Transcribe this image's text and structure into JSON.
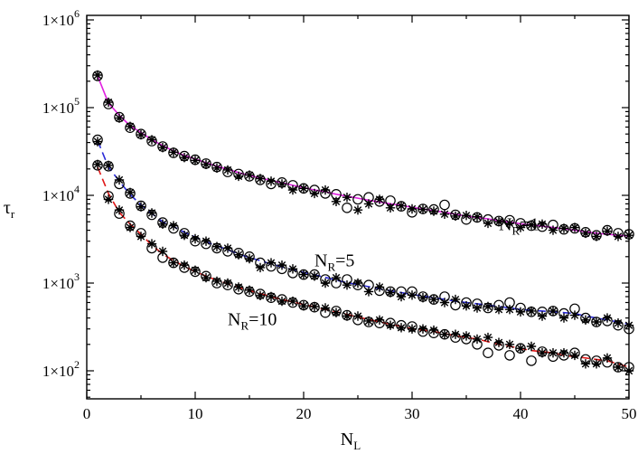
{
  "chart_data": {
    "type": "scatter",
    "title": "",
    "xlabel": {
      "base": "N",
      "sub": "L"
    },
    "ylabel": {
      "base": "τ",
      "sub": "r"
    },
    "xlim": [
      0,
      50
    ],
    "ylim": [
      50,
      1000000
    ],
    "yscale": "log",
    "grid": false,
    "x_ticks": [
      0,
      10,
      20,
      30,
      40,
      50
    ],
    "y_ticks": [
      {
        "value": 100,
        "mantissa": "1×10",
        "exp": "2"
      },
      {
        "value": 1000,
        "mantissa": "1×10",
        "exp": "3"
      },
      {
        "value": 10000,
        "mantissa": "1×10",
        "exp": "4"
      },
      {
        "value": 100000,
        "mantissa": "1×10",
        "exp": "5"
      },
      {
        "value": 1000000,
        "mantissa": "1×10",
        "exp": "6"
      }
    ],
    "series": [
      {
        "id": "nr1",
        "label": {
          "base": "N",
          "sub": "R",
          "tail": "=1"
        },
        "label_at": [
          38,
          4000
        ],
        "fit_color": "#e020e0",
        "fit_dash": false,
        "x": [
          1,
          2,
          3,
          4,
          5,
          6,
          7,
          8,
          9,
          10,
          11,
          12,
          13,
          14,
          15,
          16,
          17,
          18,
          19,
          20,
          21,
          22,
          23,
          24,
          25,
          26,
          27,
          28,
          29,
          30,
          31,
          32,
          33,
          34,
          35,
          36,
          37,
          38,
          39,
          40,
          41,
          42,
          43,
          44,
          45,
          46,
          47,
          48,
          49,
          50
        ],
        "fit": [
          230000,
          113000,
          82000,
          62000,
          52000,
          43000,
          37000,
          32000,
          28500,
          26000,
          23500,
          21500,
          19800,
          18200,
          16800,
          15800,
          14800,
          13900,
          13000,
          12300,
          11500,
          11000,
          10300,
          9800,
          9300,
          8800,
          8400,
          8000,
          7700,
          7300,
          7000,
          6700,
          6400,
          6100,
          5800,
          5600,
          5400,
          5150,
          4950,
          4750,
          4600,
          4450,
          4300,
          4150,
          4000,
          3850,
          3700,
          3600,
          3500,
          3450
        ],
        "circles": [
          230000,
          110000,
          78000,
          59000,
          50000,
          41500,
          36000,
          30500,
          28000,
          25500,
          23000,
          21000,
          18500,
          17500,
          16500,
          15000,
          13500,
          14000,
          13000,
          12000,
          11500,
          10500,
          10300,
          7200,
          9000,
          9500,
          8500,
          8700,
          7500,
          6400,
          7000,
          6900,
          7800,
          6000,
          5300,
          5600,
          5300,
          5100,
          5200,
          4800,
          4500,
          4400,
          4600,
          4100,
          4200,
          3800,
          3500,
          4000,
          3700,
          3600
        ],
        "stars": [
          235000,
          115000,
          76000,
          61000,
          49000,
          43000,
          35000,
          31000,
          27000,
          25000,
          22500,
          20500,
          19500,
          16500,
          17000,
          15500,
          14500,
          13500,
          11500,
          12000,
          10500,
          11500,
          8500,
          9500,
          6800,
          8000,
          9000,
          7200,
          7600,
          7000,
          6900,
          6600,
          6100,
          5800,
          5900,
          5700,
          4800,
          5000,
          4800,
          4300,
          4600,
          4700,
          4000,
          4200,
          4300,
          3700,
          3400,
          3900,
          3400,
          3500
        ]
      },
      {
        "id": "nr5",
        "label": {
          "base": "N",
          "sub": "R",
          "tail": "=5"
        },
        "label_at": [
          21,
          1550
        ],
        "fit_color": "#2a2ad8",
        "fit_dash": true,
        "x": [
          1,
          2,
          3,
          4,
          5,
          6,
          7,
          8,
          9,
          10,
          11,
          12,
          13,
          14,
          15,
          16,
          17,
          18,
          19,
          20,
          21,
          22,
          23,
          24,
          25,
          26,
          27,
          28,
          29,
          30,
          31,
          32,
          33,
          34,
          35,
          36,
          37,
          38,
          39,
          40,
          41,
          42,
          43,
          44,
          45,
          46,
          47,
          48,
          49,
          50
        ],
        "fit": [
          42000,
          21000,
          14500,
          10200,
          7800,
          6200,
          5000,
          4400,
          3800,
          3350,
          2950,
          2650,
          2400,
          2150,
          1950,
          1800,
          1650,
          1530,
          1420,
          1320,
          1240,
          1160,
          1080,
          1010,
          960,
          910,
          860,
          820,
          780,
          740,
          710,
          680,
          650,
          620,
          600,
          580,
          560,
          540,
          520,
          500,
          490,
          480,
          470,
          460,
          450,
          420,
          400,
          380,
          360,
          340
        ],
        "circles": [
          43000,
          21500,
          13500,
          10500,
          7600,
          6000,
          4900,
          4200,
          3700,
          3000,
          2800,
          2500,
          2300,
          2200,
          2000,
          1700,
          1550,
          1450,
          1300,
          1250,
          1250,
          1100,
          1000,
          1100,
          950,
          950,
          820,
          800,
          800,
          800,
          700,
          650,
          700,
          560,
          600,
          580,
          520,
          560,
          600,
          520,
          470,
          470,
          480,
          450,
          510,
          400,
          360,
          370,
          330,
          300
        ],
        "stars": [
          41000,
          22000,
          15000,
          10800,
          7400,
          6300,
          4700,
          4500,
          3500,
          3200,
          3000,
          2600,
          2500,
          2100,
          1900,
          1500,
          1700,
          1600,
          1450,
          1250,
          1200,
          1000,
          1150,
          950,
          1000,
          800,
          900,
          780,
          700,
          730,
          680,
          650,
          600,
          650,
          550,
          520,
          540,
          500,
          500,
          470,
          480,
          420,
          480,
          400,
          430,
          380,
          360,
          400,
          350,
          330
        ]
      },
      {
        "id": "nr10",
        "label": {
          "base": "N",
          "sub": "R",
          "tail": "=10"
        },
        "label_at": [
          13,
          330
        ],
        "fit_color": "#e01818",
        "fit_dash": true,
        "x": [
          1,
          2,
          3,
          4,
          5,
          6,
          7,
          8,
          9,
          10,
          11,
          12,
          13,
          14,
          15,
          16,
          17,
          18,
          19,
          20,
          21,
          22,
          23,
          24,
          25,
          26,
          27,
          28,
          29,
          30,
          31,
          32,
          33,
          34,
          35,
          36,
          37,
          38,
          39,
          40,
          41,
          42,
          43,
          44,
          45,
          46,
          47,
          48,
          49,
          50
        ],
        "fit": [
          21000,
          10500,
          6400,
          4700,
          3600,
          2700,
          2150,
          1800,
          1550,
          1350,
          1200,
          1080,
          980,
          890,
          820,
          760,
          700,
          650,
          610,
          570,
          535,
          500,
          470,
          440,
          410,
          385,
          360,
          340,
          320,
          300,
          290,
          280,
          265,
          250,
          240,
          230,
          215,
          200,
          190,
          180,
          170,
          165,
          160,
          150,
          145,
          140,
          135,
          130,
          120,
          110
        ],
        "circles": [
          22000,
          9800,
          6200,
          4500,
          3700,
          2500,
          1950,
          1700,
          1500,
          1350,
          1200,
          1000,
          950,
          850,
          800,
          750,
          680,
          650,
          600,
          560,
          530,
          460,
          480,
          430,
          380,
          360,
          350,
          350,
          330,
          320,
          280,
          270,
          260,
          240,
          230,
          200,
          160,
          195,
          150,
          180,
          130,
          165,
          145,
          150,
          160,
          135,
          130,
          125,
          110,
          110
        ],
        "stars": [
          22500,
          9000,
          6800,
          4300,
          3400,
          2800,
          2300,
          1700,
          1600,
          1400,
          1150,
          1050,
          1000,
          900,
          830,
          720,
          700,
          620,
          620,
          550,
          540,
          520,
          460,
          420,
          420,
          370,
          380,
          330,
          310,
          300,
          300,
          290,
          260,
          260,
          250,
          230,
          240,
          210,
          200,
          180,
          190,
          160,
          160,
          160,
          150,
          120,
          120,
          140,
          110,
          100
        ]
      }
    ]
  }
}
